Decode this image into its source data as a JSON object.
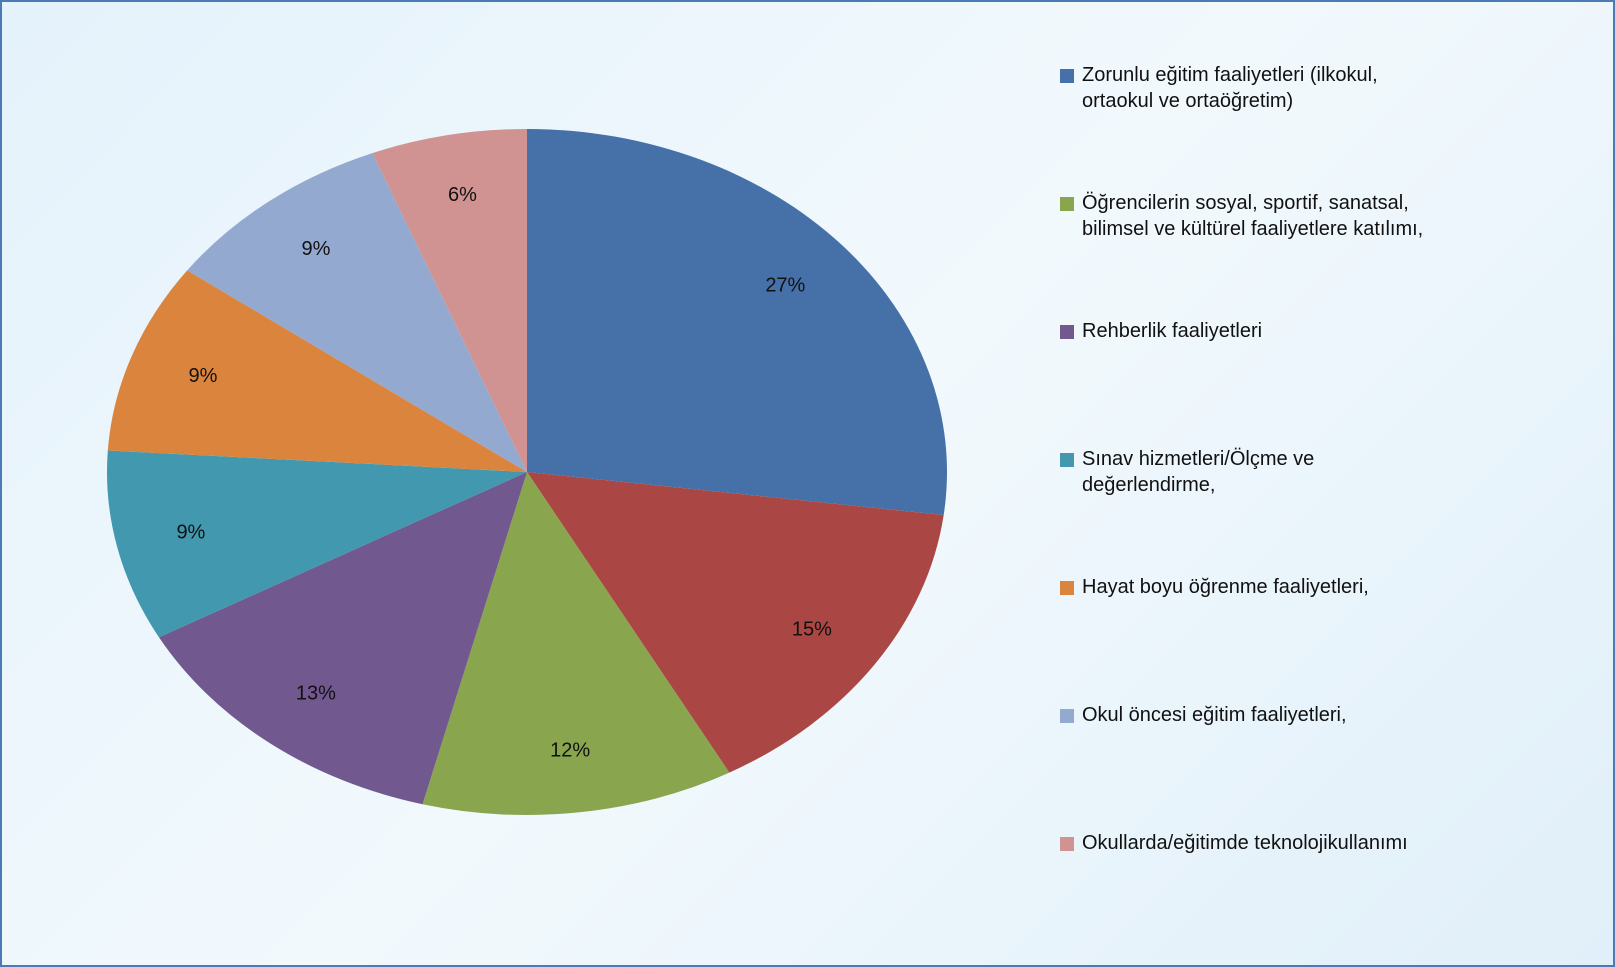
{
  "chart_data": {
    "type": "pie",
    "categories": [
      "Zorunlu eğitim faaliyetleri (ilkokul,\nortaokul ve ortaöğretim)",
      null,
      "Öğrencilerin sosyal, sportif, sanatsal,\nbilimsel ve kültürel faaliyetlere katılımı,",
      "Rehberlik faaliyetleri",
      "Sınav hizmetleri/Ölçme ve\ndeğerlendirme,",
      "Hayat boyu öğrenme faaliyetleri,",
      "Okul öncesi eğitim faaliyetleri,",
      "Okullarda/eğitimde teknolojikullanımı"
    ],
    "values": [
      27,
      15,
      12,
      13,
      9,
      9,
      9,
      6
    ],
    "value_labels": [
      "27%",
      "15%",
      "12%",
      "13%",
      "9%",
      "9%",
      "9%",
      "6%"
    ],
    "colors": [
      "#4571a8",
      "#aa4644",
      "#89a54e",
      "#71588f",
      "#4198af",
      "#db843d",
      "#93a9cf",
      "#d19392"
    ],
    "legend": "right"
  }
}
